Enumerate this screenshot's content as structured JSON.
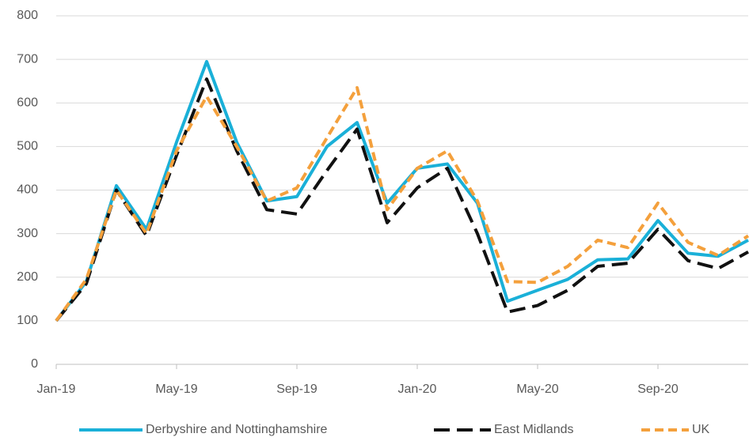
{
  "chart_data": {
    "type": "line",
    "categories": [
      "Jan-19",
      null,
      null,
      null,
      "May-19",
      null,
      null,
      null,
      "Sep-19",
      null,
      null,
      null,
      "Jan-20",
      null,
      null,
      null,
      "May-20",
      null,
      null,
      null,
      "Sep-20",
      null,
      null,
      null
    ],
    "series": [
      {
        "name": "Derbyshire and Nottinghamshire",
        "color": "#1ab0d8",
        "dash": "none",
        "values": [
          100,
          190,
          410,
          310,
          510,
          695,
          510,
          375,
          385,
          500,
          555,
          370,
          450,
          460,
          370,
          145,
          170,
          195,
          240,
          242,
          330,
          255,
          248,
          285
        ]
      },
      {
        "name": "East Midlands",
        "color": "#111111",
        "dash": "20 9",
        "values": [
          100,
          185,
          400,
          295,
          480,
          655,
          490,
          355,
          345,
          445,
          540,
          325,
          405,
          450,
          300,
          120,
          135,
          170,
          225,
          232,
          310,
          238,
          220,
          258
        ]
      },
      {
        "name": "UK",
        "color": "#f4a03c",
        "dash": "11 6",
        "values": [
          100,
          195,
          400,
          300,
          490,
          615,
          500,
          375,
          405,
          520,
          635,
          355,
          450,
          490,
          375,
          190,
          188,
          225,
          285,
          268,
          370,
          280,
          250,
          295
        ]
      }
    ],
    "ylim": [
      0,
      800
    ],
    "yticks": [
      0,
      100,
      200,
      300,
      400,
      500,
      600,
      700,
      800
    ],
    "grid": true
  }
}
